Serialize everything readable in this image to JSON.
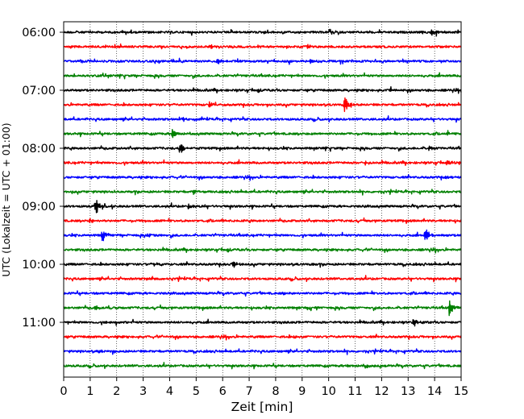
{
  "chart_data": {
    "type": "line",
    "title": "",
    "xlabel": "Zeit  [min]",
    "ylabel": "UTC (Lokalzeit = UTC + 01:00)",
    "xlim": [
      0,
      15
    ],
    "x_ticks": [
      "0",
      "1",
      "2",
      "3",
      "4",
      "5",
      "6",
      "7",
      "8",
      "9",
      "10",
      "11",
      "12",
      "13",
      "14",
      "15"
    ],
    "y_tick_labels": [
      "06:00",
      "07:00",
      "08:00",
      "09:00",
      "10:00",
      "11:00"
    ],
    "vertical_grid": true,
    "trace_minutes": 15,
    "trace_color_cycle": [
      "#000000",
      "#ff0000",
      "#0000ff",
      "#008000"
    ],
    "traces": [
      {
        "start": "06:00",
        "events": [
          {
            "t": 13.9,
            "amp": 0.35
          }
        ]
      },
      {
        "start": "06:15",
        "events": [
          {
            "t": 5.5,
            "amp": 0.2
          },
          {
            "t": 9.2,
            "amp": 0.2
          }
        ]
      },
      {
        "start": "06:30",
        "events": [
          {
            "t": 5.8,
            "amp": 0.3
          },
          {
            "t": 9.3,
            "amp": 0.25
          }
        ]
      },
      {
        "start": "06:45",
        "events": []
      },
      {
        "start": "07:00",
        "events": [
          {
            "t": 12.3,
            "amp": 0.15
          }
        ]
      },
      {
        "start": "07:15",
        "events": [
          {
            "t": 10.6,
            "amp": 1.0
          },
          {
            "t": 5.5,
            "amp": 0.25
          }
        ]
      },
      {
        "start": "07:30",
        "events": [
          {
            "t": 4.5,
            "amp": 0.2
          }
        ]
      },
      {
        "start": "07:45",
        "events": [
          {
            "t": 4.1,
            "amp": 0.55
          },
          {
            "t": 14.5,
            "amp": 0.2
          }
        ]
      },
      {
        "start": "08:00",
        "events": [
          {
            "t": 4.4,
            "amp": 0.55
          },
          {
            "t": 13.8,
            "amp": 0.2
          }
        ]
      },
      {
        "start": "08:15",
        "events": [
          {
            "t": 14.5,
            "amp": 0.25
          },
          {
            "t": 11.4,
            "amp": 0.15
          }
        ]
      },
      {
        "start": "08:30",
        "events": [
          {
            "t": 14.4,
            "amp": 0.2
          }
        ]
      },
      {
        "start": "08:45",
        "events": [
          {
            "t": 4.9,
            "amp": 0.2
          },
          {
            "t": 1.9,
            "amp": 0.15
          }
        ]
      },
      {
        "start": "09:00",
        "events": [
          {
            "t": 1.2,
            "amp": 1.0
          },
          {
            "t": 4.7,
            "amp": 0.25
          }
        ]
      },
      {
        "start": "09:15",
        "events": [
          {
            "t": 1.0,
            "amp": 0.2
          }
        ]
      },
      {
        "start": "09:30",
        "events": [
          {
            "t": 1.45,
            "amp": 0.6
          },
          {
            "t": 13.65,
            "amp": 0.8
          },
          {
            "t": 3.15,
            "amp": 0.2
          }
        ]
      },
      {
        "start": "09:45",
        "events": []
      },
      {
        "start": "10:00",
        "events": [
          {
            "t": 6.4,
            "amp": 0.35
          },
          {
            "t": 3.4,
            "amp": 0.2
          }
        ]
      },
      {
        "start": "10:15",
        "events": [
          {
            "t": 3.1,
            "amp": 0.15
          }
        ]
      },
      {
        "start": "10:30",
        "events": [
          {
            "t": 8.3,
            "amp": 0.15
          }
        ]
      },
      {
        "start": "10:45",
        "events": [
          {
            "t": 14.55,
            "amp": 0.85
          },
          {
            "t": 1.2,
            "amp": 0.3
          },
          {
            "t": 9.2,
            "amp": 0.2
          }
        ]
      },
      {
        "start": "11:00",
        "events": [
          {
            "t": 13.2,
            "amp": 0.4
          },
          {
            "t": 1.6,
            "amp": 0.15
          }
        ]
      },
      {
        "start": "11:15",
        "events": [
          {
            "t": 8.7,
            "amp": 0.2
          }
        ]
      },
      {
        "start": "11:30",
        "events": [
          {
            "t": 1.35,
            "amp": 0.15
          }
        ]
      },
      {
        "start": "11:45",
        "events": [
          {
            "t": 11.4,
            "amp": 0.25
          },
          {
            "t": 10.7,
            "amp": 0.15
          }
        ]
      }
    ]
  }
}
